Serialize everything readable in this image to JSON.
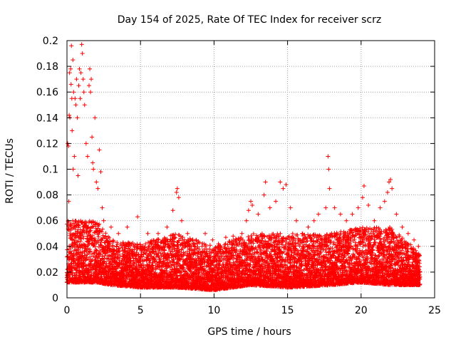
{
  "chart_data": {
    "type": "scatter",
    "title": "Day 154 of 2025, Rate Of TEC Index for receiver scrz",
    "xlabel": "GPS time / hours",
    "ylabel": "ROTI / TECUs",
    "xlim": [
      0,
      25
    ],
    "ylim": [
      0,
      0.2
    ],
    "x_ticks": [
      "0",
      "5",
      "10",
      "15",
      "20",
      "25"
    ],
    "y_ticks": [
      "0",
      "0.02",
      "0.04",
      "0.06",
      "0.08",
      "0.1",
      "0.12",
      "0.14",
      "0.16",
      "0.18",
      "0.2"
    ],
    "grid": true,
    "marker": "+",
    "color": "#ff0000",
    "series": [
      {
        "points": [
          [
            0.05,
            0.12
          ],
          [
            0.1,
            0.118
          ],
          [
            0.12,
            0.075
          ],
          [
            0.15,
            0.142
          ],
          [
            0.18,
            0.175
          ],
          [
            0.2,
            0.14
          ],
          [
            0.25,
            0.178
          ],
          [
            0.28,
            0.166
          ],
          [
            0.3,
            0.196
          ],
          [
            0.33,
            0.155
          ],
          [
            0.35,
            0.13
          ],
          [
            0.4,
            0.185
          ],
          [
            0.42,
            0.1
          ],
          [
            0.45,
            0.16
          ],
          [
            0.5,
            0.11
          ],
          [
            0.55,
            0.155
          ],
          [
            0.6,
            0.15
          ],
          [
            0.65,
            0.17
          ],
          [
            0.7,
            0.14
          ],
          [
            0.75,
            0.095
          ],
          [
            0.8,
            0.165
          ],
          [
            0.85,
            0.178
          ],
          [
            0.9,
            0.155
          ],
          [
            0.95,
            0.175
          ],
          [
            1.0,
            0.197
          ],
          [
            1.05,
            0.19
          ],
          [
            1.1,
            0.17
          ],
          [
            1.15,
            0.16
          ],
          [
            1.2,
            0.15
          ],
          [
            1.3,
            0.12
          ],
          [
            1.4,
            0.11
          ],
          [
            1.5,
            0.165
          ],
          [
            1.55,
            0.178
          ],
          [
            1.6,
            0.16
          ],
          [
            1.65,
            0.17
          ],
          [
            1.7,
            0.125
          ],
          [
            1.75,
            0.105
          ],
          [
            1.8,
            0.1
          ],
          [
            1.9,
            0.14
          ],
          [
            2.0,
            0.09
          ],
          [
            2.1,
            0.085
          ],
          [
            2.2,
            0.115
          ],
          [
            2.3,
            0.098
          ],
          [
            2.4,
            0.07
          ],
          [
            2.5,
            0.06
          ],
          [
            3.0,
            0.055
          ],
          [
            3.5,
            0.05
          ],
          [
            4.1,
            0.055
          ],
          [
            4.8,
            0.063
          ],
          [
            5.5,
            0.05
          ],
          [
            6.2,
            0.05
          ],
          [
            6.8,
            0.055
          ],
          [
            7.2,
            0.068
          ],
          [
            7.45,
            0.082
          ],
          [
            7.5,
            0.085
          ],
          [
            7.6,
            0.078
          ],
          [
            7.8,
            0.06
          ],
          [
            8.2,
            0.05
          ],
          [
            8.8,
            0.045
          ],
          [
            9.4,
            0.05
          ],
          [
            9.9,
            0.045
          ],
          [
            10.3,
            0.042
          ],
          [
            10.8,
            0.047
          ],
          [
            11.3,
            0.048
          ],
          [
            11.9,
            0.05
          ],
          [
            12.2,
            0.06
          ],
          [
            12.35,
            0.068
          ],
          [
            12.5,
            0.075
          ],
          [
            12.6,
            0.072
          ],
          [
            13.0,
            0.065
          ],
          [
            13.4,
            0.08
          ],
          [
            13.5,
            0.09
          ],
          [
            13.8,
            0.07
          ],
          [
            14.2,
            0.075
          ],
          [
            14.5,
            0.09
          ],
          [
            14.7,
            0.085
          ],
          [
            14.9,
            0.088
          ],
          [
            15.2,
            0.07
          ],
          [
            15.6,
            0.06
          ],
          [
            16.0,
            0.05
          ],
          [
            16.4,
            0.055
          ],
          [
            16.8,
            0.06
          ],
          [
            17.1,
            0.065
          ],
          [
            17.6,
            0.07
          ],
          [
            17.75,
            0.11
          ],
          [
            17.8,
            0.1
          ],
          [
            17.85,
            0.085
          ],
          [
            18.2,
            0.07
          ],
          [
            18.6,
            0.065
          ],
          [
            19.0,
            0.06
          ],
          [
            19.4,
            0.065
          ],
          [
            19.8,
            0.07
          ],
          [
            20.1,
            0.078
          ],
          [
            20.2,
            0.087
          ],
          [
            20.5,
            0.072
          ],
          [
            20.9,
            0.06
          ],
          [
            21.3,
            0.07
          ],
          [
            21.6,
            0.075
          ],
          [
            21.8,
            0.082
          ],
          [
            21.9,
            0.09
          ],
          [
            22.0,
            0.092
          ],
          [
            22.1,
            0.085
          ],
          [
            22.4,
            0.065
          ],
          [
            22.8,
            0.055
          ],
          [
            23.2,
            0.05
          ],
          [
            23.6,
            0.045
          ],
          [
            23.9,
            0.04
          ]
        ]
      }
    ],
    "band": {
      "description_of_bulk": "dense cloud of ROTI samples between roughly 0.005 and 0.06 TECU/s across 0-24 h",
      "x_range": [
        0,
        24
      ],
      "profile": [
        {
          "x": 0,
          "lo": 0.012,
          "hi": 0.06
        },
        {
          "x": 2,
          "lo": 0.012,
          "hi": 0.06
        },
        {
          "x": 3,
          "lo": 0.01,
          "hi": 0.045
        },
        {
          "x": 5,
          "lo": 0.008,
          "hi": 0.042
        },
        {
          "x": 7.5,
          "lo": 0.008,
          "hi": 0.05
        },
        {
          "x": 10,
          "lo": 0.006,
          "hi": 0.04
        },
        {
          "x": 12.5,
          "lo": 0.01,
          "hi": 0.05
        },
        {
          "x": 15,
          "lo": 0.008,
          "hi": 0.05
        },
        {
          "x": 18,
          "lo": 0.01,
          "hi": 0.05
        },
        {
          "x": 20,
          "lo": 0.012,
          "hi": 0.055
        },
        {
          "x": 22,
          "lo": 0.01,
          "hi": 0.055
        },
        {
          "x": 24,
          "lo": 0.01,
          "hi": 0.035
        }
      ]
    }
  }
}
